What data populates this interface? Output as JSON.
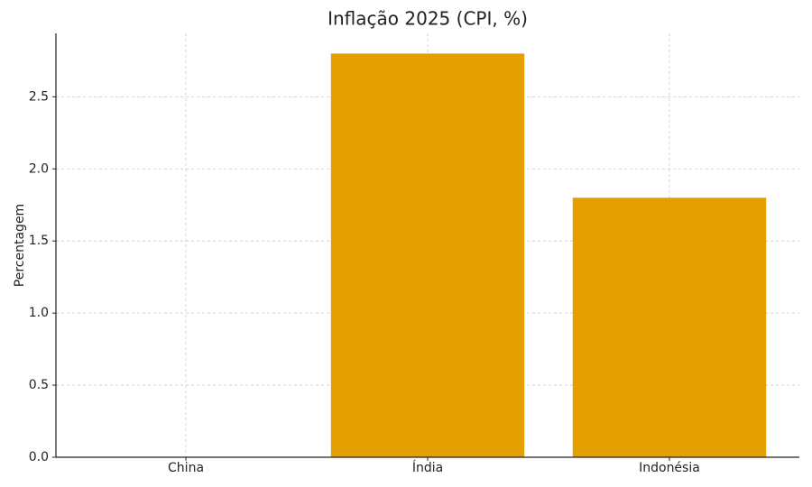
{
  "chart_data": {
    "type": "bar",
    "title": "Inflação 2025 (CPI, %)",
    "y_label": "Percentagem",
    "categories": [
      "China",
      "Índia",
      "Indonésia"
    ],
    "values": [
      0,
      2.8,
      1.8
    ],
    "color": "#e3a000",
    "ylim": [
      0,
      2.94
    ],
    "yticks": [
      {
        "value": 0,
        "label": "0.0"
      },
      0.5,
      {
        "value": 1,
        "label": "1.0"
      },
      1.5,
      {
        "value": 2,
        "label": "2.0"
      },
      2.5
    ],
    "grid": true
  }
}
